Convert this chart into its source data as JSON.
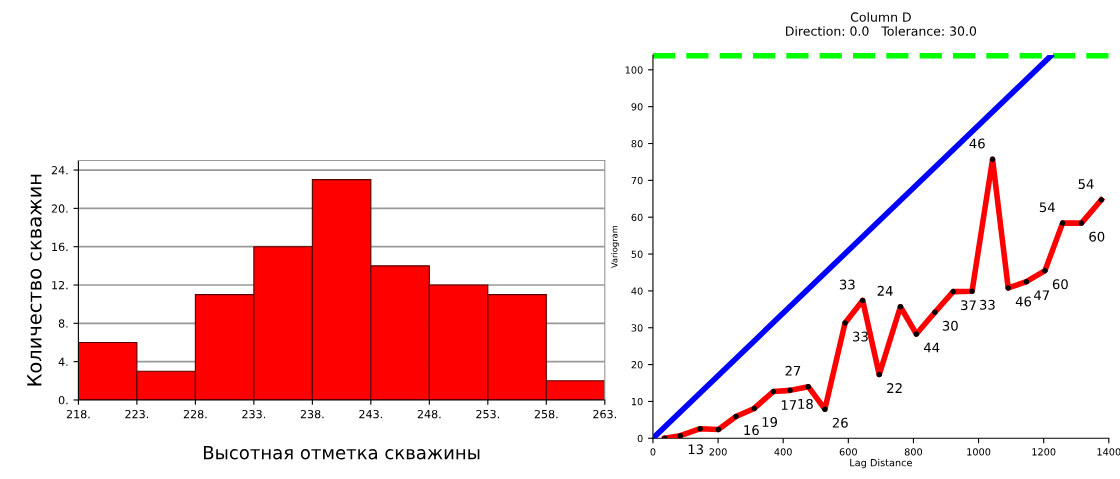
{
  "chart_data": [
    {
      "type": "histogram",
      "xlabel": "Высотная отметка скважины",
      "ylabel": "Количество скважин",
      "bins": [
        218,
        223,
        228,
        233,
        238,
        243,
        248,
        253,
        258,
        263
      ],
      "values": [
        6,
        3,
        11,
        16,
        23,
        14,
        12,
        11,
        2
      ],
      "color": "#ff0000",
      "xlim": [
        218,
        263
      ],
      "xticks": [
        {
          "value": 218,
          "label": "218."
        },
        {
          "value": 223,
          "label": "223."
        },
        {
          "value": 228,
          "label": "228."
        },
        {
          "value": 233,
          "label": "233."
        },
        {
          "value": 238,
          "label": "238."
        },
        {
          "value": 243,
          "label": "243."
        },
        {
          "value": 248,
          "label": "248."
        },
        {
          "value": 253,
          "label": "253."
        },
        {
          "value": 258,
          "label": "258."
        },
        {
          "value": 263,
          "label": "263."
        }
      ],
      "ylim": [
        0,
        25
      ],
      "yticks": [
        {
          "value": 0,
          "label": "0."
        },
        {
          "value": 4,
          "label": "4."
        },
        {
          "value": 8,
          "label": "8."
        },
        {
          "value": 12,
          "label": "12."
        },
        {
          "value": 16,
          "label": "16."
        },
        {
          "value": 20,
          "label": "20."
        },
        {
          "value": 24,
          "label": "24."
        }
      ],
      "grid": "y"
    },
    {
      "type": "line",
      "title": "Column D",
      "subtitle": "Direction: 0.0   Tolerance: 30.0",
      "xlabel": "Lag Distance",
      "ylabel": "Variogram",
      "xlim": [
        0,
        1400
      ],
      "xticks": [
        0,
        200,
        400,
        600,
        800,
        1000,
        1200,
        1400
      ],
      "ylim": [
        0,
        104
      ],
      "yticks": [
        0,
        10,
        20,
        30,
        40,
        50,
        60,
        70,
        80,
        90,
        100
      ],
      "grid": false,
      "line_style": "solid",
      "series": [
        {
          "color": "#ff0000",
          "marker": "circle",
          "x": [
            36,
            84,
            145,
            201,
            255,
            311,
            370,
            421,
            477,
            528,
            590,
            644,
            695,
            760,
            809,
            866,
            922,
            980,
            1043,
            1091,
            1147,
            1204,
            1258,
            1316,
            1377
          ],
          "values": [
            0,
            0.7,
            2.6,
            2.4,
            5.9,
            8.1,
            12.7,
            13.0,
            14.0,
            7.9,
            31.3,
            37.4,
            17.3,
            35.7,
            28.3,
            34.2,
            39.8,
            39.9,
            75.7,
            40.8,
            42.5,
            45.5,
            58.4,
            58.4,
            64.7
          ]
        },
        {
          "color": "#0000ff",
          "marker": "none",
          "x": [
            0,
            1222
          ],
          "values": [
            0,
            103.8
          ]
        }
      ],
      "annotations": [
        {
          "text": "13",
          "x": 84,
          "y": 0.7
        },
        {
          "text": "16",
          "x": 255,
          "y": 5.9
        },
        {
          "text": "19",
          "x": 311,
          "y": 8.1
        },
        {
          "text": "17",
          "x": 370,
          "y": 12.7
        },
        {
          "text": "18",
          "x": 421,
          "y": 13.0
        },
        {
          "text": "27",
          "x": 477,
          "y": 14.0
        },
        {
          "text": "26",
          "x": 528,
          "y": 7.9
        },
        {
          "text": "33",
          "x": 590,
          "y": 31.3
        },
        {
          "text": "33",
          "x": 644,
          "y": 37.4
        },
        {
          "text": "22",
          "x": 695,
          "y": 17.3
        },
        {
          "text": "24",
          "x": 760,
          "y": 35.7
        },
        {
          "text": "44",
          "x": 809,
          "y": 28.3
        },
        {
          "text": "30",
          "x": 866,
          "y": 34.2
        },
        {
          "text": "37",
          "x": 922,
          "y": 39.8
        },
        {
          "text": "33",
          "x": 980,
          "y": 39.9
        },
        {
          "text": "46",
          "x": 1043,
          "y": 75.7
        },
        {
          "text": "46",
          "x": 1091,
          "y": 40.8
        },
        {
          "text": "47",
          "x": 1147,
          "y": 42.5
        },
        {
          "text": "60",
          "x": 1204,
          "y": 45.5
        },
        {
          "text": "54",
          "x": 1258,
          "y": 58.4
        },
        {
          "text": "60",
          "x": 1316,
          "y": 58.4
        },
        {
          "text": "54",
          "x": 1377,
          "y": 64.7
        }
      ],
      "ref_lines": [
        {
          "axis": "y",
          "value": 103.8,
          "color": "#00ff00",
          "line_style": "dashed"
        }
      ]
    }
  ]
}
